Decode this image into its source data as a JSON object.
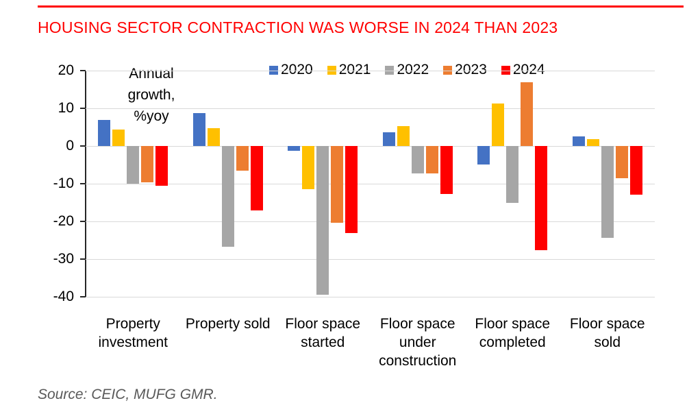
{
  "page": {
    "title": "HOUSING SECTOR CONTRACTION WAS WORSE IN 2024 THAN 2023",
    "source": "Source: CEIC, MUFG GMR.",
    "accent_color": "#FF0000"
  },
  "chart_data": {
    "type": "bar",
    "title": "HOUSING SECTOR CONTRACTION WAS WORSE IN 2024 THAN 2023",
    "annotation": "Annual growth, %yoy",
    "categories": [
      "Property investment",
      "Property sold",
      "Floor space started",
      "Floor space under construction",
      "Floor space completed",
      "Floor space sold"
    ],
    "series": [
      {
        "name": "2020",
        "color": "#4472C4",
        "values": [
          7.0,
          8.7,
          -1.2,
          3.7,
          -4.9,
          2.6
        ]
      },
      {
        "name": "2021",
        "color": "#FFC000",
        "values": [
          4.4,
          4.8,
          -11.4,
          5.3,
          11.2,
          1.9
        ]
      },
      {
        "name": "2022",
        "color": "#A6A6A6",
        "values": [
          -10.0,
          -26.7,
          -39.4,
          -7.2,
          -15.0,
          -24.3
        ]
      },
      {
        "name": "2023",
        "color": "#ED7D31",
        "values": [
          -9.6,
          -6.5,
          -20.4,
          -7.2,
          17.0,
          -8.5
        ]
      },
      {
        "name": "2024",
        "color": "#FF0000",
        "values": [
          -10.6,
          -17.1,
          -23.0,
          -12.7,
          -27.7,
          -12.9
        ]
      }
    ],
    "ylabel": "",
    "xlabel": "",
    "ylim": [
      -40,
      20
    ],
    "yticks": [
      20,
      10,
      0,
      -10,
      -20,
      -30,
      -40
    ],
    "grid": true,
    "legend_position": "top",
    "gridline_color": "#D9D9D9",
    "axis_color": "#262626"
  }
}
